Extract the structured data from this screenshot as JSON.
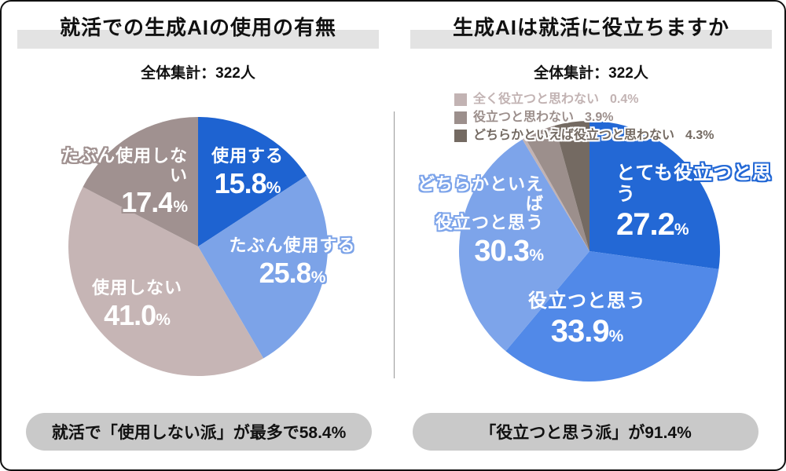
{
  "page": {
    "background": "#ffffff",
    "border_color": "#111111",
    "divider_color": "#999999",
    "title_band_color": "#e3e3e3",
    "banner_bg": "#c9c9c9",
    "percent_sign": "%"
  },
  "chart_data": [
    {
      "type": "pie",
      "title": "就活での生成AIの使用の有無",
      "subtitle": "全体集計：322人",
      "total_people": 322,
      "start_angle": "12-oclock",
      "direction": "clockwise",
      "slices": [
        {
          "label": "使用する",
          "value": 15.8,
          "num": "15.8",
          "pct": "15.8%",
          "color": "#1e63d1"
        },
        {
          "label": "たぶん使用する",
          "value": 25.8,
          "num": "25.8",
          "pct": "25.8%",
          "color": "#7ca3e8"
        },
        {
          "label": "使用しない",
          "value": 41.0,
          "num": "41.0",
          "pct": "41.0%",
          "color": "#c6b5b5"
        },
        {
          "label": "たぶん使用しない",
          "value": 17.4,
          "num": "17.4",
          "pct": "17.4%",
          "color": "#a09190"
        }
      ],
      "annotation": "就活で「使用しない派」が最多で58.4%"
    },
    {
      "type": "pie",
      "title": "生成AIは就活に役立ちますか",
      "subtitle": "全体集計：322人",
      "total_people": 322,
      "start_angle": "12-oclock",
      "direction": "clockwise",
      "legend_position": "top-left-overlay",
      "slices": [
        {
          "label": "とても役立つと思う",
          "value": 27.2,
          "num": "27.2",
          "pct": "27.2%",
          "color": "#2368d5"
        },
        {
          "label": "役立つと思う",
          "value": 33.9,
          "num": "33.9",
          "pct": "33.9%",
          "color": "#5189e8"
        },
        {
          "label": "どちらかといえば役立つと思う",
          "label_line1": "どちらかといえば",
          "label_line2": "役立つと思う",
          "value": 30.3,
          "num": "30.3",
          "pct": "30.3%",
          "color": "#7da4ea"
        },
        {
          "label": "全く役立つと思わない",
          "value": 0.4,
          "num": "0.4",
          "pct": "0.4%",
          "color": "#c2b3b3"
        },
        {
          "label": "役立つと思わない",
          "value": 3.9,
          "num": "3.9",
          "pct": "3.9%",
          "color": "#9c8f8c"
        },
        {
          "label": "どちらかといえば役立つと思わない",
          "value": 4.3,
          "num": "4.3",
          "pct": "4.3%",
          "color": "#746a62"
        }
      ],
      "annotation": "「役立つと思う派」が91.4%"
    }
  ]
}
